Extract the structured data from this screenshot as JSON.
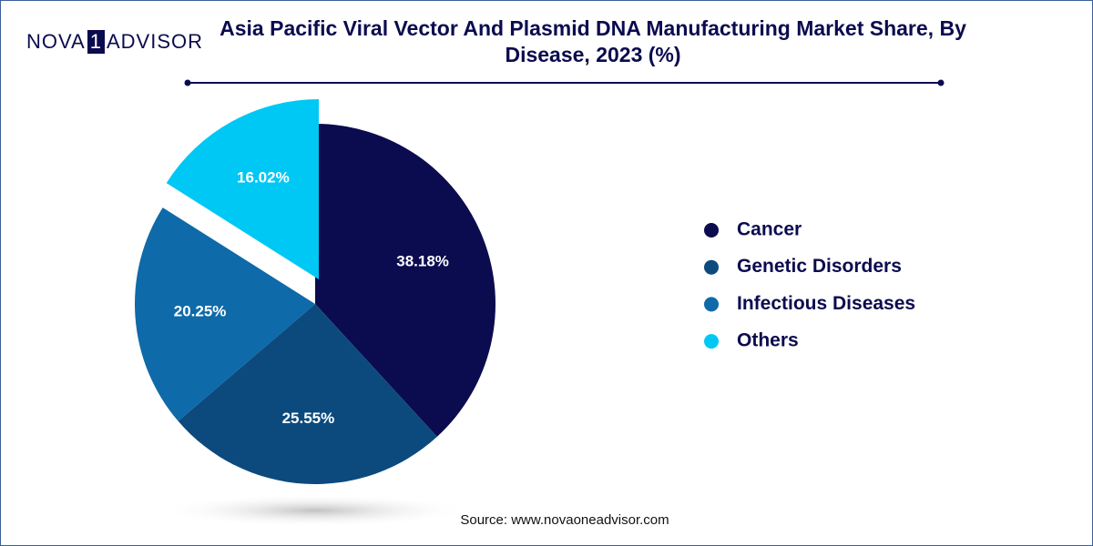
{
  "logo": {
    "parts": [
      "NOVA",
      "1",
      "ADVISOR"
    ]
  },
  "chart_data": {
    "type": "pie",
    "title": "Asia Pacific Viral Vector And Plasmid DNA Manufacturing Market Share, By Disease, 2023 (%)",
    "categories": [
      "Cancer",
      "Genetic Disorders",
      "Infectious Diseases",
      "Others"
    ],
    "values": [
      38.18,
      25.55,
      20.25,
      16.02
    ],
    "value_labels": [
      "38.18%",
      "25.55%",
      "20.25%",
      "16.02%"
    ],
    "colors": [
      "#0b0b4f",
      "#0c4a7e",
      "#0e6aa8",
      "#00c8f5"
    ],
    "source": "Source: www.novaoneadvisor.com"
  }
}
